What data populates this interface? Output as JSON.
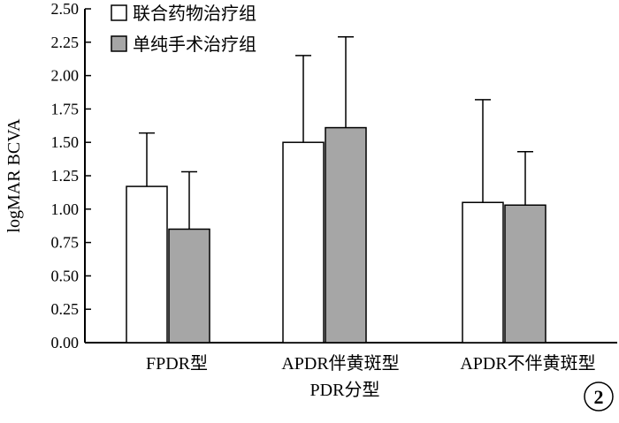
{
  "chart_data": {
    "type": "bar",
    "ylabel": "logMAR BCVA",
    "ylim": [
      0,
      2.5
    ],
    "yticks": [
      "0.00",
      "0.25",
      "0.50",
      "0.75",
      "1.00",
      "1.25",
      "1.50",
      "1.75",
      "2.00",
      "2.25",
      "2.50"
    ],
    "categories": [
      "FPDR型",
      "APDR伴黄斑型",
      "APDR不伴黄斑型"
    ],
    "series": [
      {
        "name": "联合药物治疗组",
        "color": "#ffffff",
        "values": [
          1.17,
          1.5,
          1.05
        ],
        "errors": [
          0.4,
          0.65,
          0.77
        ]
      },
      {
        "name": "单纯手术治疗组",
        "color": "#a6a6a6",
        "values": [
          0.85,
          1.61,
          1.03
        ],
        "errors": [
          0.43,
          0.68,
          0.4
        ]
      }
    ],
    "legend_position": "top-left",
    "grid": false,
    "caption": "PDR分型",
    "panel_label": "2"
  }
}
